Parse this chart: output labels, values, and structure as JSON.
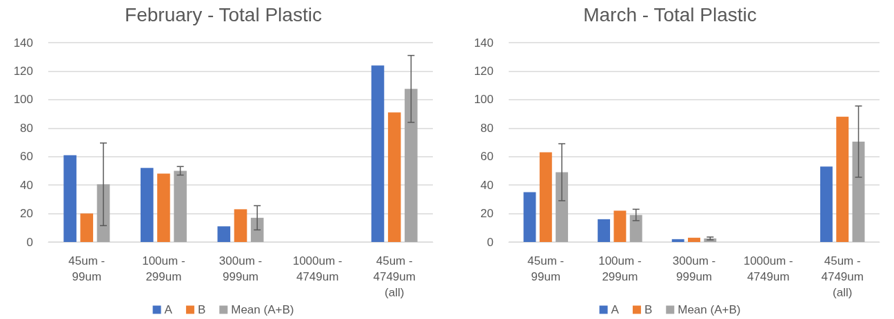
{
  "chart_data": [
    {
      "type": "bar",
      "title": "February - Total Plastic",
      "categories": [
        "45um -\n99um",
        "100um -\n299um",
        "300um -\n999um",
        "1000um -\n4749um",
        "45um -\n4749um\n(all)"
      ],
      "series": [
        {
          "name": "A",
          "color": "#4472c4",
          "values": [
            61,
            52,
            11,
            0,
            124
          ]
        },
        {
          "name": "B",
          "color": "#ed7d31",
          "values": [
            20,
            48,
            23,
            0,
            91
          ]
        },
        {
          "name": "Mean (A+B)",
          "color": "#a5a5a5",
          "values": [
            40.5,
            50,
            17,
            0,
            107.5
          ],
          "errors": [
            29,
            3,
            8.5,
            null,
            23.5
          ]
        }
      ],
      "ylim": [
        0,
        140
      ],
      "yticks": [
        0,
        20,
        40,
        60,
        80,
        100,
        120,
        140
      ],
      "grid": "y",
      "legend": "bottom"
    },
    {
      "type": "bar",
      "title": "March - Total Plastic",
      "categories": [
        "45um -\n99um",
        "100um -\n299um",
        "300um -\n999um",
        "1000um -\n4749um",
        "45um -\n4749um\n(all)"
      ],
      "series": [
        {
          "name": "A",
          "color": "#4472c4",
          "values": [
            35,
            16,
            2,
            0,
            53
          ]
        },
        {
          "name": "B",
          "color": "#ed7d31",
          "values": [
            63,
            22,
            3,
            0,
            88
          ]
        },
        {
          "name": "Mean (A+B)",
          "color": "#a5a5a5",
          "values": [
            49,
            19,
            2.5,
            0,
            70.5
          ],
          "errors": [
            20,
            4,
            1,
            null,
            25
          ]
        }
      ],
      "ylim": [
        0,
        140
      ],
      "yticks": [
        0,
        20,
        40,
        60,
        80,
        100,
        120,
        140
      ],
      "grid": "y",
      "legend": "bottom"
    }
  ]
}
